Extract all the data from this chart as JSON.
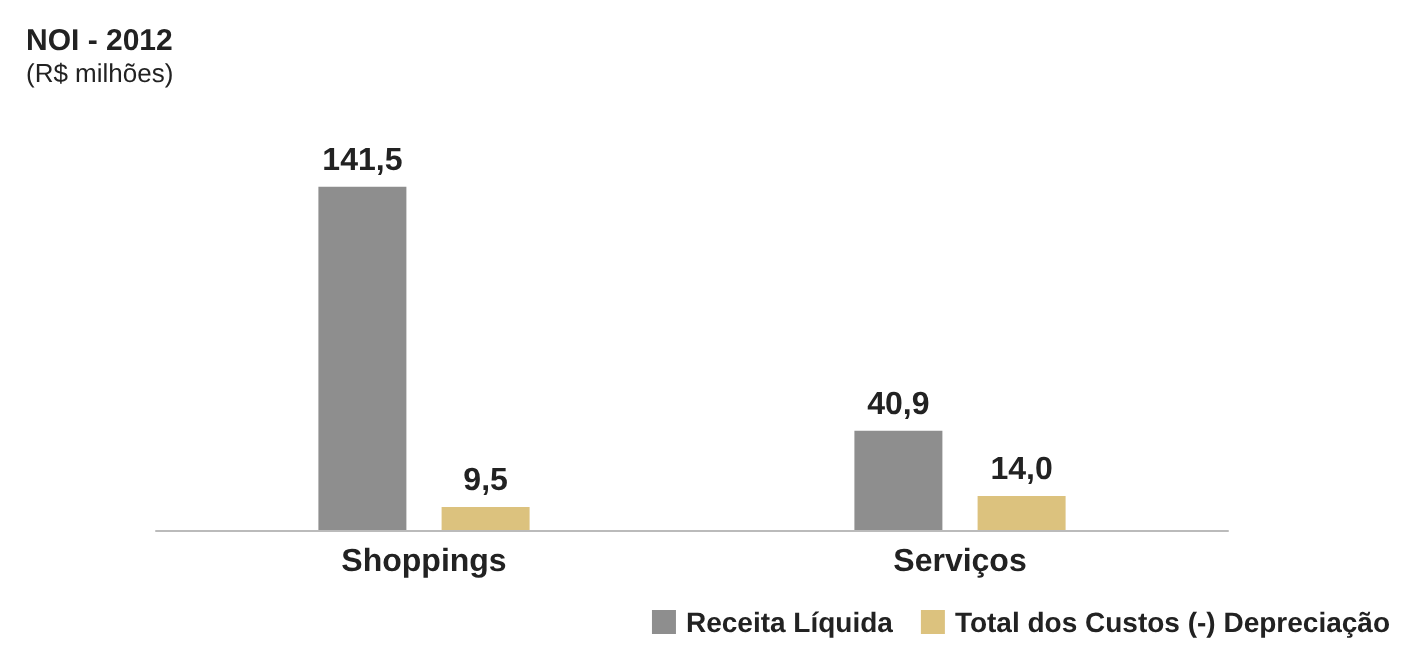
{
  "chart_data": {
    "type": "bar",
    "title": "NOI - 2012",
    "subtitle": "(R$ milhões)",
    "categories": [
      "Shoppings",
      "Serviços"
    ],
    "series": [
      {
        "name": "Receita Líquida",
        "color": "#8e8e8e",
        "values": [
          141.5,
          40.9
        ],
        "value_labels": [
          "141,5",
          "40,9"
        ]
      },
      {
        "name": "Total dos Custos (-) Depreciação",
        "color": "#dcc27e",
        "values": [
          9.5,
          14.0
        ],
        "value_labels": [
          "9,5",
          "14,0"
        ]
      }
    ],
    "legend": "bottom right"
  }
}
